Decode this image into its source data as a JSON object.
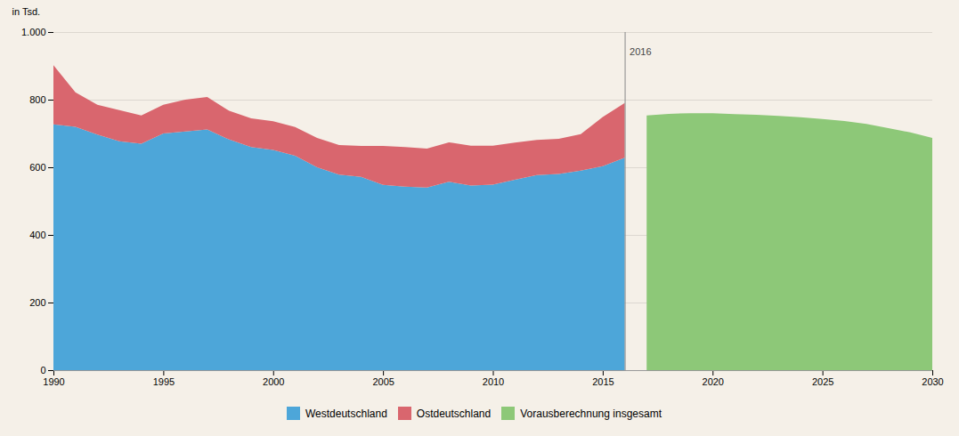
{
  "chart_data": {
    "type": "area",
    "stacked": true,
    "x": [
      1990,
      1991,
      1992,
      1993,
      1994,
      1995,
      1996,
      1997,
      1998,
      1999,
      2000,
      2001,
      2002,
      2003,
      2004,
      2005,
      2006,
      2007,
      2008,
      2009,
      2010,
      2011,
      2012,
      2013,
      2014,
      2015,
      2016,
      2017,
      2018,
      2019,
      2020,
      2021,
      2022,
      2023,
      2024,
      2025,
      2026,
      2027,
      2028,
      2029,
      2030
    ],
    "series": [
      {
        "name": "Westdeutschland",
        "color": "#4da6d9",
        "values": [
          727,
          720,
          697,
          677,
          670,
          700,
          706,
          712,
          682,
          660,
          651,
          634,
          600,
          578,
          572,
          548,
          543,
          540,
          557,
          546,
          549,
          563,
          577,
          580,
          590,
          603,
          628,
          null,
          null,
          null,
          null,
          null,
          null,
          null,
          null,
          null,
          null,
          null,
          null,
          null,
          null
        ]
      },
      {
        "name": "Ostdeutschland",
        "color": "#d9666e",
        "values": [
          175,
          102,
          88,
          92,
          83,
          85,
          94,
          96,
          85,
          85,
          85,
          85,
          87,
          88,
          91,
          115,
          117,
          115,
          117,
          118,
          115,
          110,
          104,
          104,
          108,
          146,
          162,
          null,
          null,
          null,
          null,
          null,
          null,
          null,
          null,
          null,
          null,
          null,
          null,
          null,
          null
        ]
      },
      {
        "name": "Vorausberechnung insgesamt",
        "color": "#8dc878",
        "values": [
          null,
          null,
          null,
          null,
          null,
          null,
          null,
          null,
          null,
          null,
          null,
          null,
          null,
          null,
          null,
          null,
          null,
          null,
          null,
          null,
          null,
          null,
          null,
          null,
          null,
          null,
          null,
          753,
          758,
          760,
          760,
          757,
          755,
          752,
          748,
          743,
          737,
          728,
          716,
          703,
          687
        ]
      }
    ],
    "ylabel": "in Tsd.",
    "xlim": [
      1990,
      2030
    ],
    "xticks": [
      1990,
      1995,
      2000,
      2005,
      2010,
      2015,
      2020,
      2025,
      2030
    ],
    "ylim": [
      0,
      1000
    ],
    "yticks": [
      0,
      200,
      400,
      600,
      800,
      {
        "value": 1000,
        "label": "1.000"
      }
    ],
    "grid": true,
    "legend": "bottom",
    "annotations": [
      {
        "x": 2016,
        "text": "2016",
        "color": "#888888"
      }
    ]
  }
}
